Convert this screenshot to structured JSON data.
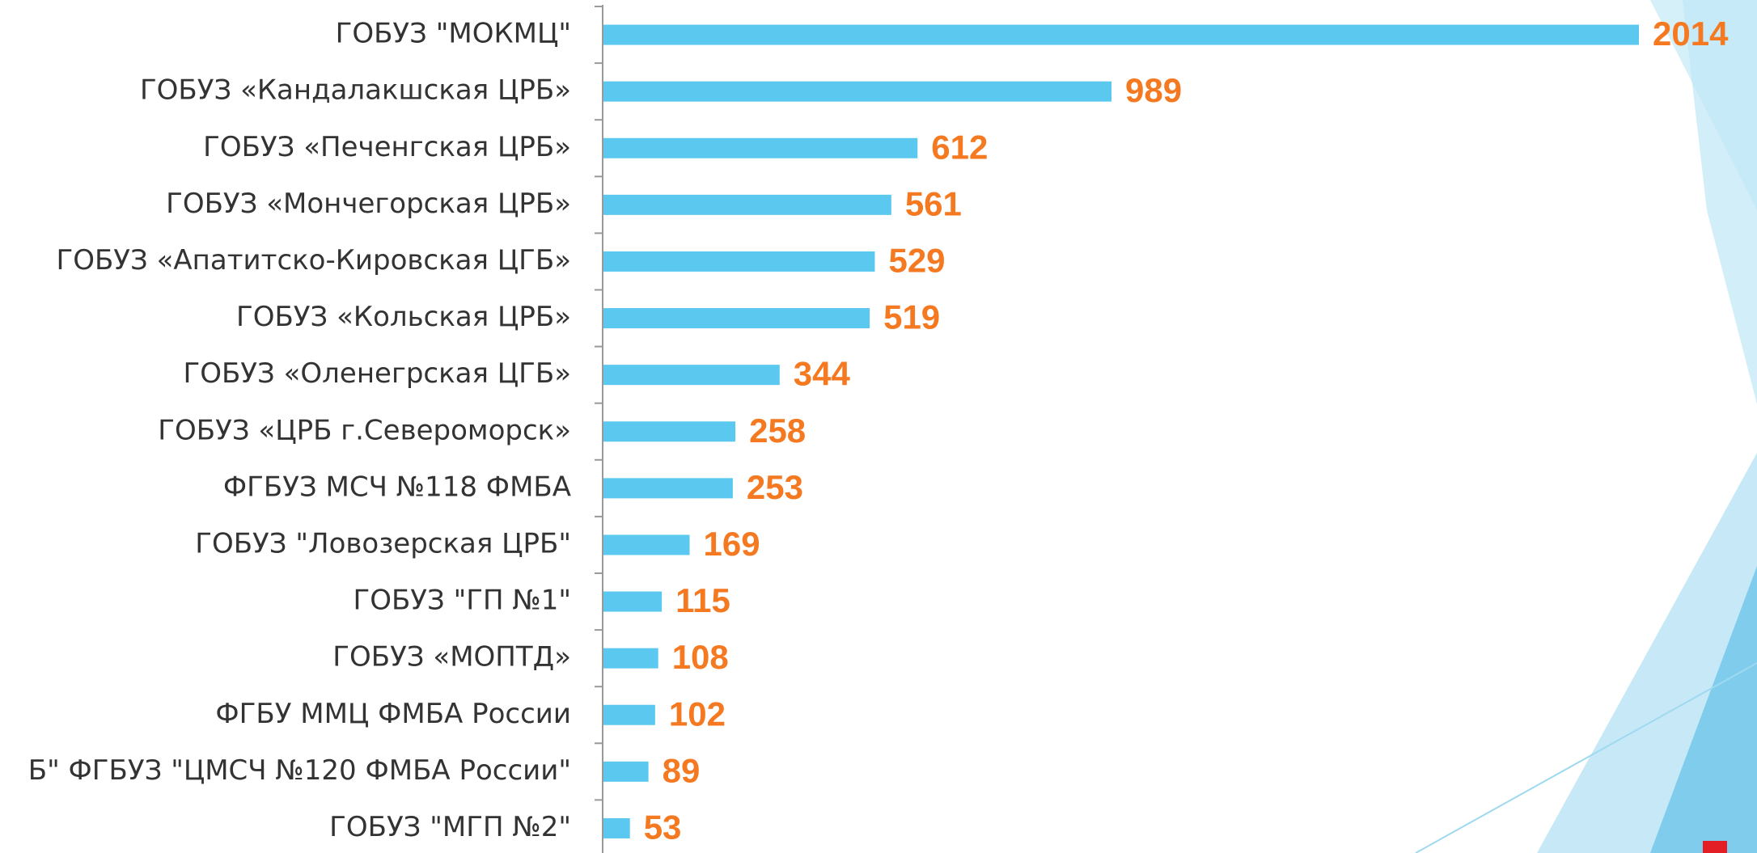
{
  "chart_data": {
    "type": "bar",
    "orientation": "horizontal",
    "categories": [
      "ГОБУЗ \"МОКМЦ\"",
      "ГОБУЗ «Кандалакшская ЦРБ»",
      "ГОБУЗ «Печенгская ЦРБ»",
      "ГОБУЗ «Мончегорская ЦРБ»",
      "ГОБУЗ «Апатитско-Кировская ЦГБ»",
      "ГОБУЗ «Кольская ЦРБ»",
      "ГОБУЗ «Оленегрская ЦГБ»",
      "ГОБУЗ «ЦРБ г.Североморск»",
      "ФГБУЗ МСЧ №118 ФМБА",
      "ГОБУЗ \"Ловозерская ЦРБ\"",
      "ГОБУЗ \"ГП №1\"",
      "ГОБУЗ «МОПТД»",
      "ФГБУ ММЦ ФМБА России",
      "Б\" ФГБУЗ \"ЦМСЧ №120 ФМБА России\"",
      "ГОБУЗ \"МГП №2\""
    ],
    "values": [
      2014,
      989,
      612,
      561,
      529,
      519,
      344,
      258,
      253,
      169,
      115,
      108,
      102,
      89,
      53
    ],
    "color": "#5bc8ef",
    "label_color": "#f47920"
  }
}
